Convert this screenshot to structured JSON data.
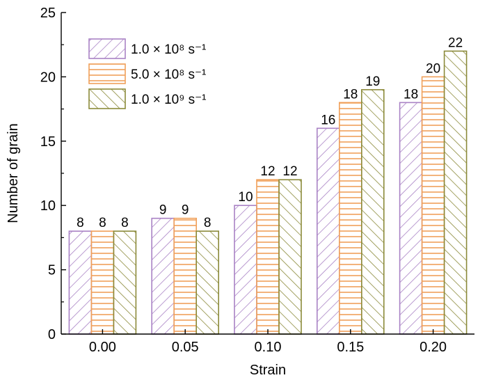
{
  "chart_data": {
    "type": "bar",
    "xlabel": "Strain",
    "ylabel": "Number of grain",
    "ylim": [
      0,
      25
    ],
    "yticks": [
      0,
      5,
      10,
      15,
      20,
      25
    ],
    "categories": [
      "0.00",
      "0.05",
      "0.10",
      "0.15",
      "0.20"
    ],
    "series": [
      {
        "name": "1.0 × 10⁸ s⁻¹",
        "values": [
          8,
          9,
          10,
          16,
          18
        ],
        "color": "#a982c5",
        "hatch": "diagonal-forward"
      },
      {
        "name": "5.0 × 10⁸ s⁻¹",
        "values": [
          8,
          9,
          12,
          18,
          20
        ],
        "color": "#f0a05a",
        "hatch": "horizontal"
      },
      {
        "name": "1.0 × 10⁹ s⁻¹",
        "values": [
          8,
          8,
          12,
          19,
          22
        ],
        "color": "#8b8a3a",
        "hatch": "diagonal-backward"
      }
    ],
    "data_labels": true,
    "legend_position": "top-left",
    "grid": false
  }
}
